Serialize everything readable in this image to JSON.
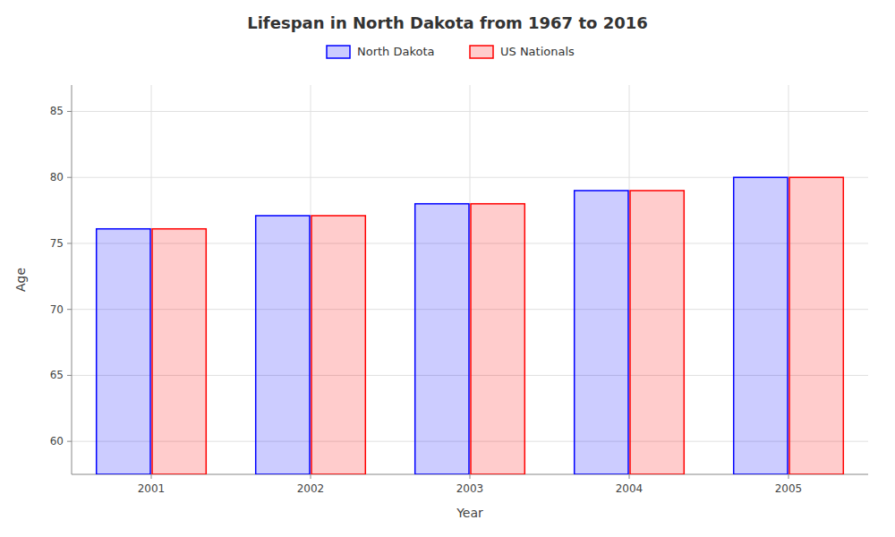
{
  "chart_data": {
    "type": "bar",
    "title": "Lifespan in North Dakota from 1967 to 2016",
    "x_label": "Year",
    "y_label": "Age",
    "categories": [
      "2001",
      "2002",
      "2003",
      "2004",
      "2005"
    ],
    "series": [
      {
        "name": "North Dakota",
        "color": "#0000ff",
        "values": [
          76.1,
          77.1,
          78.0,
          79.0,
          80.0
        ]
      },
      {
        "name": "US Nationals",
        "color": "#ff0000",
        "values": [
          76.1,
          77.1,
          78.0,
          79.0,
          80.0
        ]
      }
    ],
    "ylim": [
      57.5,
      87
    ],
    "yticks": [
      60,
      65,
      70,
      75,
      80,
      85
    ],
    "grid": true,
    "legend": "top"
  }
}
